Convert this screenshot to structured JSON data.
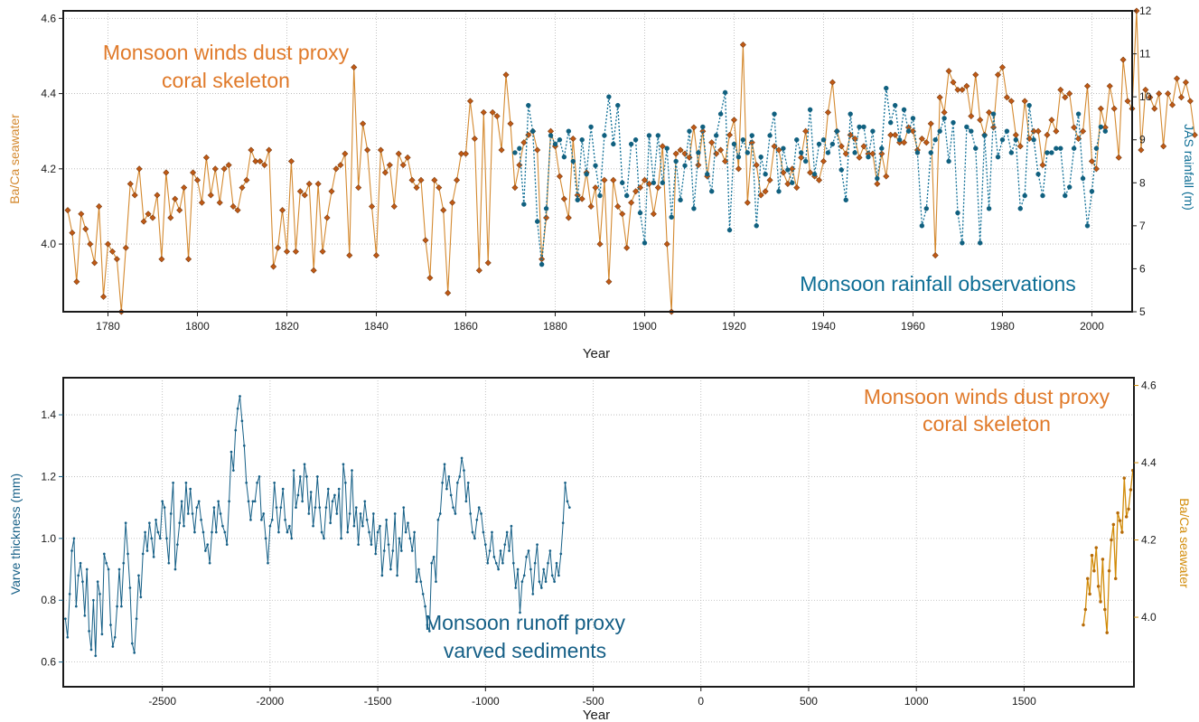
{
  "colors": {
    "coral": "#c05a16",
    "coral_line": "#d4892f",
    "coral_label": "#e07a2a",
    "rain": "#0e6e95",
    "rain_dot": "#10607f",
    "varve": "#155f86",
    "coral_bottom": "#d28c0a",
    "grid": "#b4b4b4"
  },
  "chart_data": [
    {
      "type": "line",
      "xlabel": "Year",
      "ylabel_left": "Ba/Ca seawater",
      "ylabel_right": "JAS rainfall (m)",
      "xlim": [
        1770,
        2009
      ],
      "ylim_left": [
        3.82,
        4.62
      ],
      "ylim_right": [
        5,
        12
      ],
      "xticks": [
        1780,
        1800,
        1820,
        1840,
        1860,
        1880,
        1900,
        1920,
        1940,
        1960,
        1980,
        2000
      ],
      "yticks_left": [
        4.0,
        4.2,
        4.4,
        4.6
      ],
      "yticks_left_labels": [
        "4.0",
        "4.2",
        "4.4",
        "4.6"
      ],
      "yticks_right": [
        5,
        6,
        7,
        8,
        9,
        10,
        11,
        12
      ],
      "grid": true,
      "annotations": [
        {
          "text": "Monsoon winds dust proxy",
          "series": "coral"
        },
        {
          "text": "coral skeleton",
          "series": "coral"
        },
        {
          "text": "Monsoon rainfall observations",
          "series": "rain"
        }
      ],
      "series": [
        {
          "axis": "left",
          "marker": "diamond",
          "x_start": 1771,
          "x_step": 1,
          "values": [
            4.09,
            4.03,
            3.9,
            4.08,
            4.04,
            4.0,
            3.95,
            4.1,
            3.86,
            4.0,
            3.98,
            3.96,
            3.82,
            3.99,
            4.16,
            4.13,
            4.2,
            4.06,
            4.08,
            4.07,
            4.13,
            3.96,
            4.19,
            4.07,
            4.12,
            4.09,
            4.15,
            3.96,
            4.19,
            4.17,
            4.11,
            4.23,
            4.13,
            4.2,
            4.11,
            4.2,
            4.21,
            4.1,
            4.09,
            4.15,
            4.17,
            4.25,
            4.22,
            4.22,
            4.21,
            4.25,
            3.94,
            3.99,
            4.09,
            3.98,
            4.22,
            3.98,
            4.14,
            4.13,
            4.16,
            3.93,
            4.16,
            3.98,
            4.07,
            4.14,
            4.2,
            4.21,
            4.24,
            3.97,
            4.47,
            4.15,
            4.32,
            4.25,
            4.1,
            3.97,
            4.25,
            4.19,
            4.21,
            4.1,
            4.24,
            4.21,
            4.23,
            4.17,
            4.15,
            4.17,
            4.01,
            3.91,
            4.17,
            4.15,
            4.09,
            3.87,
            4.11,
            4.17,
            4.24,
            4.24,
            4.38,
            4.28,
            3.93,
            4.35,
            3.95,
            4.35,
            4.34,
            4.25,
            4.45,
            4.32,
            4.15,
            4.21,
            4.27,
            4.29,
            4.3,
            4.25,
            3.96,
            4.07,
            4.3,
            4.26,
            4.18,
            4.12,
            4.07,
            4.28,
            4.13,
            4.12,
            4.19,
            4.1,
            4.15,
            4.0,
            4.17,
            3.9,
            4.17,
            4.1,
            4.08,
            3.99,
            4.11,
            4.14,
            4.15,
            4.17,
            4.16,
            4.08,
            4.15,
            4.26,
            4.0,
            3.82,
            4.24,
            4.25,
            4.24,
            4.23,
            4.31,
            4.21,
            4.3,
            4.18,
            4.27,
            4.24,
            4.25,
            4.22,
            4.29,
            4.33,
            4.2,
            4.53,
            4.11,
            4.27,
            4.21,
            4.13,
            4.14,
            4.17,
            4.26,
            4.25,
            4.19,
            4.16,
            4.2,
            4.15,
            4.23,
            4.3,
            4.19,
            4.18,
            4.17,
            4.22,
            4.35,
            4.43,
            4.3,
            4.26,
            4.24,
            4.29,
            4.28,
            4.23,
            4.26,
            4.24,
            4.24,
            4.16,
            4.24,
            4.18,
            4.29,
            4.29,
            4.27,
            4.27,
            4.31,
            4.3,
            4.25,
            4.28,
            4.27,
            4.32,
            3.97,
            4.39,
            4.35,
            4.46,
            4.43,
            4.41,
            4.41,
            4.42,
            4.34,
            4.45,
            4.33,
            4.29,
            4.35,
            4.31,
            4.45,
            4.47,
            4.39,
            4.38,
            4.29,
            4.26,
            4.38,
            4.28,
            4.3,
            4.3,
            4.21,
            4.29,
            4.33,
            4.3,
            4.41,
            4.39,
            4.4,
            4.31,
            4.28,
            4.3,
            4.42,
            4.22,
            4.2,
            4.36,
            4.31,
            4.42,
            4.36,
            4.23,
            4.49,
            4.38,
            4.36,
            4.62,
            4.25,
            4.41,
            4.39,
            4.36,
            4.4,
            4.26,
            4.4,
            4.37,
            4.44,
            4.39,
            4.43,
            4.38,
            4.29
          ]
        },
        {
          "axis": "right",
          "marker": "circle",
          "x_start": 1871,
          "x_step": 1,
          "values": [
            8.7,
            8.8,
            7.5,
            9.8,
            9.2,
            7.1,
            6.1,
            7.4,
            9.1,
            8.9,
            9.0,
            8.6,
            9.2,
            8.5,
            7.6,
            9.0,
            8.2,
            9.3,
            8.4,
            7.7,
            9.1,
            10.0,
            8.9,
            9.8,
            8.0,
            7.7,
            8.9,
            9.0,
            7.3,
            6.6,
            9.1,
            8.0,
            9.1,
            8.0,
            8.8,
            7.2,
            8.5,
            7.6,
            8.4,
            9.2,
            7.4,
            8.7,
            9.3,
            8.2,
            7.8,
            9.1,
            9.6,
            10.1,
            6.9,
            8.9,
            8.6,
            9.0,
            8.7,
            9.1,
            7.0,
            8.6,
            8.2,
            9.1,
            9.6,
            7.8,
            8.8,
            8.3,
            8.0,
            9.0,
            8.7,
            8.5,
            9.7,
            8.2,
            8.9,
            9.0,
            8.7,
            8.9,
            9.2,
            8.3,
            7.6,
            9.6,
            8.7,
            9.3,
            9.3,
            8.6,
            9.2,
            8.1,
            8.8,
            10.2,
            9.4,
            9.8,
            9.0,
            9.7,
            9.2,
            9.5,
            8.7,
            7.0,
            7.4,
            8.7,
            9.0,
            9.2,
            9.5,
            8.5,
            9.4,
            7.3,
            6.6,
            9.3,
            9.2,
            8.8,
            6.6,
            9.1,
            7.4,
            9.6,
            8.6,
            9.0,
            9.2,
            8.7,
            9.0,
            7.4,
            7.7,
            9.8,
            9.0,
            8.2,
            7.7,
            8.7,
            8.7,
            8.8,
            8.8,
            7.7,
            7.9,
            8.8,
            9.6,
            8.1,
            7.0,
            7.8,
            8.8,
            9.3,
            9.2
          ]
        }
      ]
    },
    {
      "type": "line",
      "xlabel": "Year",
      "ylabel_left": "Varve thickness (mm)",
      "ylabel_right": "Ba/Ca seawater",
      "xlim": [
        -2960,
        2010
      ],
      "ylim_left": [
        0.52,
        1.52
      ],
      "ylim_right": [
        3.82,
        4.62
      ],
      "xticks": [
        -2500,
        -2000,
        -1500,
        -1000,
        -500,
        0,
        500,
        1000,
        1500
      ],
      "yticks_left": [
        0.6,
        0.8,
        1.0,
        1.2,
        1.4
      ],
      "yticks_left_labels": [
        "0.6",
        "0.8",
        "1.0",
        "1.2",
        "1.4"
      ],
      "yticks_right": [
        4.0,
        4.2,
        4.4,
        4.6
      ],
      "yticks_right_labels": [
        "4.0",
        "4.2",
        "4.4",
        "4.6"
      ],
      "grid": true,
      "annotations": [
        {
          "text": "Monsoon winds dust proxy",
          "series": "coral"
        },
        {
          "text": "coral skeleton",
          "series": "coral"
        },
        {
          "text": "Monsoon runoff proxy",
          "series": "varve"
        },
        {
          "text": "varved sediments",
          "series": "varve"
        }
      ],
      "series": [
        {
          "axis": "left",
          "marker": "dot",
          "x_start": -2950,
          "x_step": 10,
          "values": [
            0.74,
            0.68,
            0.82,
            0.96,
            1.0,
            0.78,
            0.88,
            0.92,
            0.86,
            0.75,
            0.9,
            0.7,
            0.64,
            0.8,
            0.62,
            0.86,
            0.82,
            0.69,
            0.95,
            0.92,
            0.9,
            0.72,
            0.65,
            0.68,
            0.78,
            0.9,
            0.78,
            0.92,
            1.05,
            0.95,
            0.84,
            0.66,
            0.63,
            0.74,
            0.88,
            0.81,
            0.95,
            1.02,
            0.96,
            1.05,
            1.0,
            0.94,
            1.06,
            1.02,
            1.0,
            1.12,
            1.1,
            1.0,
            0.92,
            1.08,
            1.18,
            0.9,
            0.98,
            1.05,
            1.12,
            1.04,
            1.18,
            1.08,
            1.16,
            1.08,
            1.02,
            1.1,
            1.12,
            1.06,
            1.02,
            0.96,
            0.98,
            0.92,
            1.02,
            1.1,
            1.02,
            1.12,
            1.08,
            1.04,
            1.02,
            0.98,
            1.12,
            1.28,
            1.22,
            1.35,
            1.42,
            1.46,
            1.38,
            1.3,
            1.18,
            1.12,
            1.06,
            1.12,
            1.12,
            1.18,
            1.2,
            1.06,
            1.08,
            1.0,
            0.92,
            1.04,
            1.06,
            1.18,
            1.1,
            1.02,
            1.1,
            1.16,
            1.06,
            1.02,
            1.04,
            1.0,
            1.22,
            1.1,
            1.14,
            1.2,
            1.12,
            1.24,
            1.2,
            1.08,
            1.15,
            1.04,
            1.1,
            1.2,
            1.1,
            1.02,
            1.0,
            1.1,
            1.16,
            1.05,
            1.12,
            1.14,
            1.08,
            1.16,
            1.0,
            1.24,
            1.18,
            1.02,
            1.08,
            1.22,
            1.04,
            1.1,
            0.98,
            1.08,
            1.04,
            1.12,
            1.06,
            1.02,
            0.98,
            1.08,
            0.95,
            1.02,
            1.04,
            0.88,
            0.96,
            1.06,
            0.98,
            0.9,
            0.96,
            1.08,
            0.88,
            1.0,
            0.96,
            1.1,
            1.02,
            1.05,
            1.0,
            0.96,
            1.02,
            0.86,
            0.9,
            0.86,
            0.82,
            0.78,
            0.72,
            0.7,
            0.92,
            0.94,
            0.86,
            1.06,
            1.08,
            1.18,
            1.24,
            1.16,
            1.2,
            1.14,
            1.1,
            1.08,
            1.18,
            1.2,
            1.26,
            1.22,
            1.12,
            1.18,
            1.08,
            1.02,
            1.0,
            1.06,
            1.1,
            1.08,
            1.02,
            0.98,
            0.92,
            0.96,
            1.02,
            0.94,
            0.92,
            0.9,
            0.96,
            0.92,
            0.98,
            1.02,
            0.96,
            1.04,
            0.92,
            0.84,
            0.9,
            0.76,
            0.86,
            0.88,
            0.94,
            0.96,
            0.9,
            0.82,
            0.92,
            0.98,
            0.86,
            0.84,
            0.9,
            0.86,
            0.92,
            0.96,
            0.88,
            0.86,
            0.92,
            0.88,
            0.95,
            1.05,
            1.18,
            1.12,
            1.1
          ]
        },
        {
          "axis": "right",
          "marker": "dot",
          "x_start": 1775,
          "x_step": 10,
          "values": [
            3.98,
            4.02,
            4.1,
            4.06,
            4.16,
            4.12,
            4.18,
            4.08,
            4.04,
            4.15,
            4.02,
            3.96,
            4.12,
            4.2,
            4.24,
            4.1,
            4.27,
            4.25,
            4.22,
            4.36,
            4.26,
            4.28,
            4.33,
            4.38
          ]
        }
      ]
    }
  ]
}
